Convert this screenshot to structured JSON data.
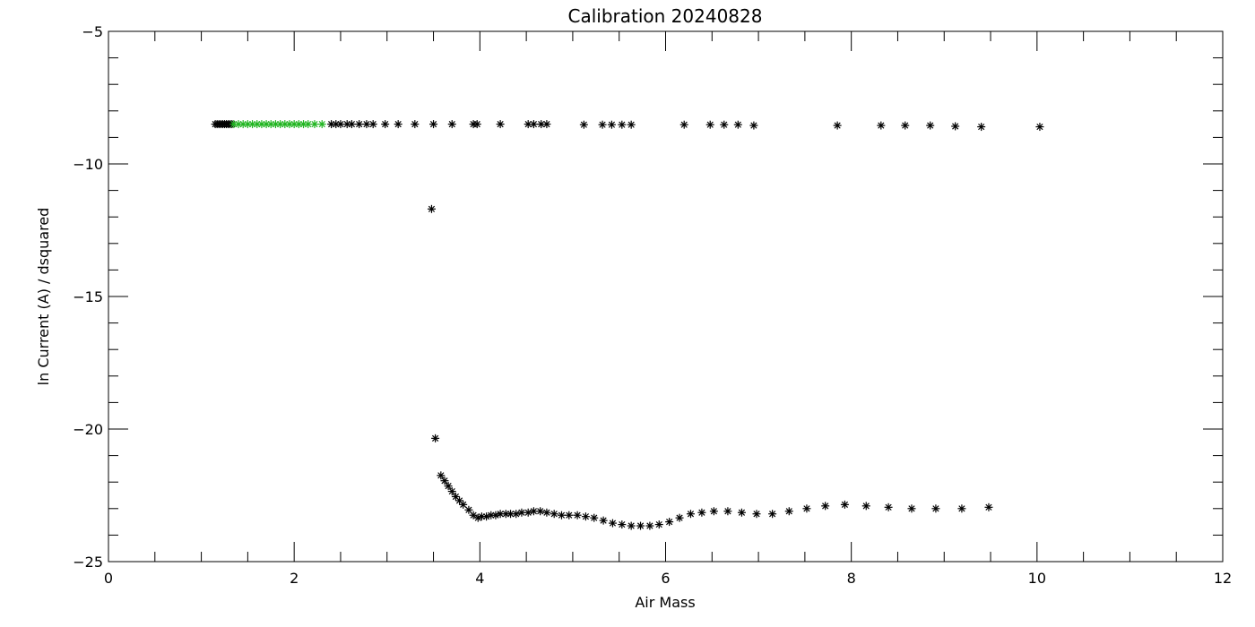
{
  "chart_data": {
    "type": "scatter",
    "title": "Calibration 20240828",
    "xlabel": "Air Mass",
    "ylabel": "ln Current (A) / dsquared",
    "xlim": [
      0,
      12
    ],
    "ylim": [
      -25,
      -5
    ],
    "xticks": [
      0,
      2,
      4,
      6,
      8,
      10,
      12
    ],
    "yticks": [
      -25,
      -20,
      -15,
      -10,
      -5
    ],
    "grid": false,
    "marker": "asterisk",
    "colors": {
      "black": "#000000",
      "green": "#22b522"
    },
    "series": [
      {
        "color": "#000000",
        "points": [
          [
            1.15,
            -8.5
          ],
          [
            1.17,
            -8.5
          ],
          [
            1.19,
            -8.5
          ],
          [
            1.21,
            -8.5
          ],
          [
            1.23,
            -8.5
          ],
          [
            1.25,
            -8.5
          ],
          [
            1.27,
            -8.5
          ],
          [
            1.29,
            -8.5
          ],
          [
            1.31,
            -8.5
          ],
          [
            1.33,
            -8.5
          ],
          [
            2.4,
            -8.5
          ],
          [
            2.45,
            -8.5
          ],
          [
            2.5,
            -8.5
          ],
          [
            2.57,
            -8.5
          ],
          [
            2.62,
            -8.5
          ],
          [
            2.7,
            -8.5
          ],
          [
            2.78,
            -8.5
          ],
          [
            2.85,
            -8.5
          ],
          [
            2.98,
            -8.5
          ],
          [
            3.12,
            -8.5
          ],
          [
            3.3,
            -8.5
          ],
          [
            3.5,
            -8.5
          ],
          [
            3.7,
            -8.5
          ],
          [
            3.93,
            -8.5
          ],
          [
            3.97,
            -8.5
          ],
          [
            4.22,
            -8.5
          ],
          [
            4.52,
            -8.5
          ],
          [
            4.58,
            -8.5
          ],
          [
            4.66,
            -8.5
          ],
          [
            4.72,
            -8.5
          ],
          [
            5.12,
            -8.52
          ],
          [
            5.32,
            -8.52
          ],
          [
            5.42,
            -8.52
          ],
          [
            5.53,
            -8.52
          ],
          [
            5.63,
            -8.52
          ],
          [
            6.2,
            -8.52
          ],
          [
            6.48,
            -8.52
          ],
          [
            6.63,
            -8.52
          ],
          [
            6.78,
            -8.52
          ],
          [
            6.95,
            -8.55
          ],
          [
            7.85,
            -8.55
          ],
          [
            8.32,
            -8.55
          ],
          [
            8.58,
            -8.55
          ],
          [
            8.85,
            -8.55
          ],
          [
            9.12,
            -8.58
          ],
          [
            9.4,
            -8.6
          ],
          [
            10.03,
            -8.6
          ],
          [
            3.48,
            -11.7
          ],
          [
            3.52,
            -20.35
          ],
          [
            3.58,
            -21.75
          ],
          [
            3.62,
            -21.95
          ],
          [
            3.66,
            -22.15
          ],
          [
            3.7,
            -22.35
          ],
          [
            3.74,
            -22.55
          ],
          [
            3.78,
            -22.7
          ],
          [
            3.82,
            -22.85
          ],
          [
            3.88,
            -23.05
          ],
          [
            3.93,
            -23.25
          ],
          [
            3.98,
            -23.35
          ],
          [
            4.02,
            -23.3
          ],
          [
            4.07,
            -23.3
          ],
          [
            4.12,
            -23.25
          ],
          [
            4.17,
            -23.25
          ],
          [
            4.22,
            -23.2
          ],
          [
            4.28,
            -23.2
          ],
          [
            4.33,
            -23.2
          ],
          [
            4.39,
            -23.2
          ],
          [
            4.45,
            -23.15
          ],
          [
            4.52,
            -23.15
          ],
          [
            4.58,
            -23.1
          ],
          [
            4.65,
            -23.1
          ],
          [
            4.72,
            -23.15
          ],
          [
            4.8,
            -23.2
          ],
          [
            4.88,
            -23.25
          ],
          [
            4.96,
            -23.25
          ],
          [
            5.05,
            -23.25
          ],
          [
            5.14,
            -23.3
          ],
          [
            5.23,
            -23.35
          ],
          [
            5.33,
            -23.45
          ],
          [
            5.43,
            -23.55
          ],
          [
            5.53,
            -23.6
          ],
          [
            5.63,
            -23.65
          ],
          [
            5.73,
            -23.65
          ],
          [
            5.83,
            -23.65
          ],
          [
            5.93,
            -23.6
          ],
          [
            6.04,
            -23.5
          ],
          [
            6.15,
            -23.35
          ],
          [
            6.27,
            -23.2
          ],
          [
            6.39,
            -23.15
          ],
          [
            6.52,
            -23.1
          ],
          [
            6.67,
            -23.1
          ],
          [
            6.82,
            -23.15
          ],
          [
            6.98,
            -23.2
          ],
          [
            7.15,
            -23.2
          ],
          [
            7.33,
            -23.1
          ],
          [
            7.52,
            -23.0
          ],
          [
            7.72,
            -22.9
          ],
          [
            7.93,
            -22.85
          ],
          [
            8.16,
            -22.9
          ],
          [
            8.4,
            -22.95
          ],
          [
            8.65,
            -23.0
          ],
          [
            8.91,
            -23.0
          ],
          [
            9.19,
            -23.0
          ],
          [
            9.48,
            -22.95
          ]
        ]
      },
      {
        "color": "#22b522",
        "points": [
          [
            1.35,
            -8.5
          ],
          [
            1.4,
            -8.5
          ],
          [
            1.45,
            -8.5
          ],
          [
            1.5,
            -8.5
          ],
          [
            1.55,
            -8.5
          ],
          [
            1.6,
            -8.5
          ],
          [
            1.65,
            -8.5
          ],
          [
            1.7,
            -8.5
          ],
          [
            1.75,
            -8.5
          ],
          [
            1.8,
            -8.5
          ],
          [
            1.85,
            -8.5
          ],
          [
            1.9,
            -8.5
          ],
          [
            1.95,
            -8.5
          ],
          [
            2.0,
            -8.5
          ],
          [
            2.05,
            -8.5
          ],
          [
            2.1,
            -8.5
          ],
          [
            2.15,
            -8.5
          ],
          [
            2.22,
            -8.5
          ],
          [
            2.3,
            -8.5
          ]
        ]
      }
    ]
  }
}
